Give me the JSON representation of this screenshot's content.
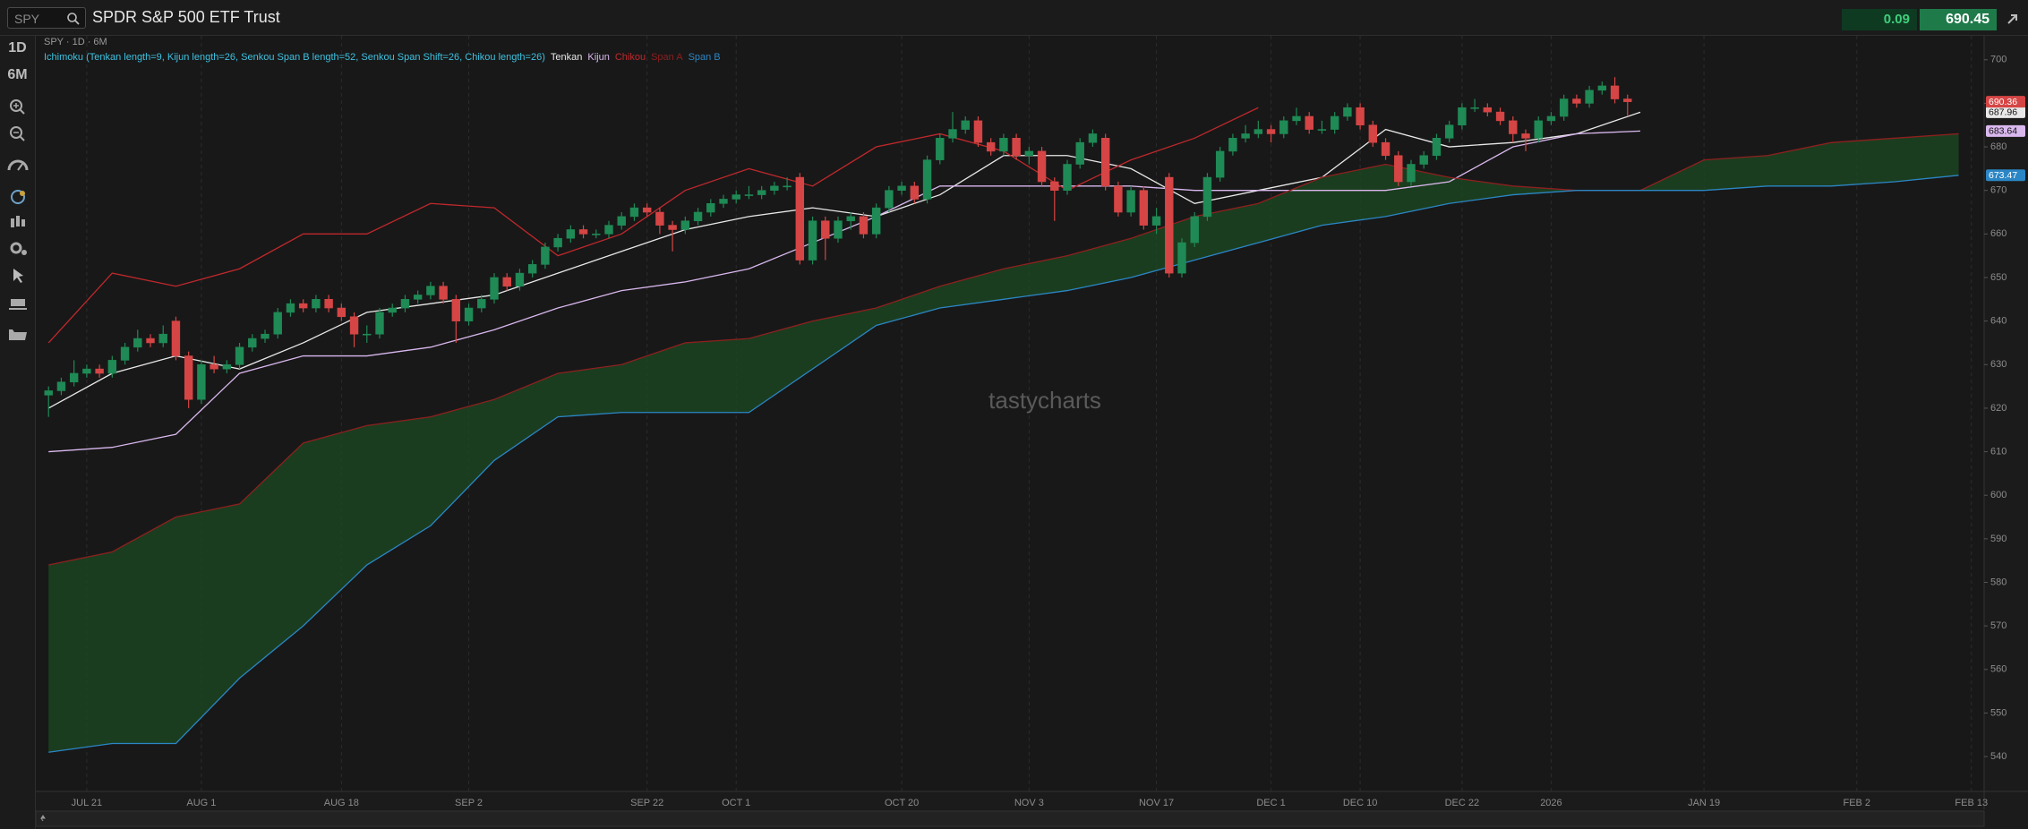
{
  "header": {
    "symbol": "SPY",
    "title": "SPDR S&P 500 ETF Trust",
    "change": 0.09,
    "price": 690.45
  },
  "toolbar": {
    "interval": "1D",
    "range": "6M"
  },
  "chart_data": {
    "type": "candlestick",
    "subtitle": "SPY · 1D · 6M",
    "indicator": "Ichimoku (Tenkan length=9, Kijun length=26, Senkou Span B length=52, Senkou Span Shift=26, Chikou length=26)",
    "watermark": "tastycharts",
    "up_color": "#1f8a55",
    "down_color": "#d64545",
    "cloud_color": "#1c4a22",
    "open": [
      623,
      624,
      626,
      628,
      629,
      628,
      631,
      634,
      636,
      635,
      640,
      632,
      622,
      630,
      629,
      630,
      634,
      636,
      637,
      642,
      644,
      643,
      645,
      643,
      641,
      637,
      637,
      642,
      643,
      645,
      646,
      648,
      645,
      640,
      643,
      645,
      650,
      648,
      651,
      653,
      657,
      659,
      661,
      660,
      660,
      662,
      664,
      666,
      665,
      662,
      661,
      663,
      665,
      667,
      668,
      669,
      669,
      670,
      671,
      673,
      654,
      663,
      659,
      663,
      664,
      660,
      666,
      670,
      671,
      668,
      677,
      682,
      684,
      686,
      681,
      679,
      682,
      678,
      679,
      672,
      670,
      676,
      681,
      682,
      671,
      665,
      670,
      662,
      673,
      651,
      658,
      664,
      673,
      679,
      682,
      683,
      684,
      683,
      686,
      687,
      684,
      684,
      687,
      689,
      685,
      681,
      678,
      672,
      676,
      678,
      682,
      685,
      689,
      689,
      688,
      686,
      683,
      682,
      686,
      687,
      691,
      690,
      693,
      694,
      691
    ],
    "high": [
      625,
      627,
      631,
      630,
      630,
      632,
      635,
      638,
      637,
      639,
      641,
      633,
      631,
      632,
      631,
      635,
      637,
      638,
      643,
      645,
      645,
      646,
      646,
      644,
      642,
      639,
      643,
      644,
      646,
      647,
      649,
      649,
      646,
      644,
      646,
      651,
      651,
      652,
      654,
      658,
      660,
      662,
      662,
      661,
      663,
      665,
      667,
      667,
      666,
      663,
      664,
      666,
      668,
      669,
      670,
      671,
      671,
      672,
      673,
      674,
      664,
      664,
      664,
      665,
      665,
      667,
      671,
      672,
      672,
      678,
      683,
      688,
      687,
      687,
      682,
      683,
      683,
      680,
      680,
      673,
      677,
      682,
      684,
      683,
      672,
      671,
      671,
      666,
      674,
      659,
      665,
      674,
      680,
      683,
      685,
      686,
      685,
      687,
      689,
      688,
      686,
      688,
      690,
      690,
      686,
      682,
      679,
      677,
      679,
      683,
      686,
      690,
      691,
      690,
      689,
      687,
      684,
      687,
      688,
      692,
      692,
      694,
      695,
      696,
      692
    ],
    "low": [
      618,
      623,
      625,
      627,
      627,
      627,
      630,
      633,
      634,
      634,
      631,
      620,
      621,
      628,
      628,
      629,
      633,
      635,
      636,
      641,
      642,
      642,
      642,
      640,
      634,
      635,
      636,
      641,
      642,
      644,
      645,
      644,
      635,
      639,
      642,
      644,
      647,
      647,
      650,
      652,
      656,
      658,
      659,
      659,
      659,
      661,
      663,
      664,
      660,
      656,
      660,
      662,
      664,
      666,
      667,
      668,
      668,
      669,
      670,
      653,
      653,
      654,
      658,
      661,
      659,
      659,
      665,
      669,
      667,
      667,
      676,
      681,
      683,
      680,
      678,
      678,
      677,
      676,
      671,
      663,
      669,
      675,
      680,
      670,
      664,
      664,
      661,
      660,
      650,
      650,
      657,
      663,
      672,
      678,
      681,
      682,
      681,
      682,
      685,
      683,
      683,
      683,
      686,
      684,
      680,
      677,
      671,
      671,
      675,
      677,
      681,
      684,
      688,
      687,
      685,
      681,
      679,
      681,
      685,
      686,
      689,
      689,
      692,
      690,
      687
    ],
    "close": [
      624,
      626,
      628,
      629,
      628,
      631,
      634,
      636,
      635,
      637,
      632,
      622,
      630,
      629,
      630,
      634,
      636,
      637,
      642,
      644,
      643,
      645,
      643,
      641,
      637,
      637,
      642,
      643,
      645,
      646,
      648,
      645,
      640,
      643,
      645,
      650,
      648,
      651,
      653,
      657,
      659,
      661,
      660,
      660,
      662,
      664,
      666,
      665,
      662,
      661,
      663,
      665,
      667,
      668,
      669,
      669,
      670,
      671,
      671,
      654,
      663,
      659,
      663,
      664,
      660,
      666,
      670,
      671,
      668,
      677,
      682,
      684,
      686,
      681,
      679,
      682,
      678,
      679,
      672,
      670,
      676,
      681,
      683,
      671,
      665,
      670,
      662,
      664,
      651,
      658,
      664,
      673,
      679,
      682,
      683,
      684,
      683,
      686,
      687,
      684,
      684,
      687,
      689,
      685,
      681,
      678,
      672,
      676,
      678,
      682,
      685,
      689,
      689,
      688,
      686,
      683,
      682,
      686,
      687,
      691,
      690,
      693,
      694,
      691,
      690.36
    ],
    "line_x": [
      0,
      5,
      10,
      15,
      20,
      25,
      30,
      35,
      40,
      45,
      50,
      55,
      60,
      65,
      70,
      75,
      80,
      85,
      90,
      95,
      100,
      105,
      110,
      115,
      120,
      125,
      130,
      135,
      140,
      145,
      150
    ],
    "series": [
      {
        "name": "Tenkan",
        "color": "#e8e8e8",
        "values": [
          620,
          628,
          632,
          629,
          635,
          642,
          644,
          646,
          651,
          656,
          661,
          664,
          666,
          664,
          669,
          678,
          678,
          675,
          667,
          670,
          673,
          684,
          680,
          681,
          683,
          687.96,
          null,
          null,
          null,
          null,
          null
        ]
      },
      {
        "name": "Kijun",
        "color": "#d9b8ee",
        "values": [
          610,
          611,
          614,
          628,
          632,
          632,
          634,
          638,
          643,
          647,
          649,
          652,
          658,
          664,
          671,
          671,
          671,
          671,
          670,
          670,
          670,
          670,
          672,
          680,
          683,
          683.64,
          null,
          null,
          null,
          null,
          null
        ]
      },
      {
        "name": "Chikou",
        "color": "#c0282c",
        "values": [
          635,
          651,
          648,
          652,
          660,
          660,
          667,
          666,
          655,
          660,
          670,
          675,
          671,
          680,
          683,
          679,
          670,
          677,
          682,
          689,
          null,
          null,
          null,
          null,
          null,
          null,
          null,
          null,
          null,
          null,
          null
        ]
      },
      {
        "name": "Span A",
        "color": "#8e1f1f",
        "values": [
          584,
          587,
          595,
          598,
          612,
          616,
          618,
          622,
          628,
          630,
          635,
          636,
          640,
          643,
          648,
          652,
          655,
          659,
          664,
          667,
          673,
          676,
          673,
          671,
          670,
          670,
          677,
          678,
          681,
          682,
          683
        ]
      },
      {
        "name": "Span B",
        "color": "#2b86c5",
        "values": [
          541,
          543,
          543,
          558,
          570,
          584,
          593,
          608,
          618,
          619,
          619,
          619,
          629,
          639,
          643,
          645,
          647,
          650,
          654,
          658,
          662,
          664,
          667,
          669,
          670,
          670,
          670,
          671,
          671,
          672,
          673.47
        ]
      }
    ],
    "xlim": [
      -1,
      152
    ],
    "xticks": [
      {
        "value": 3,
        "label": "JUL 21"
      },
      {
        "value": 12,
        "label": "AUG 1"
      },
      {
        "value": 23,
        "label": "AUG 18"
      },
      {
        "value": 33,
        "label": "SEP 2"
      },
      {
        "value": 47,
        "label": "SEP 22"
      },
      {
        "value": 54,
        "label": "OCT 1"
      },
      {
        "value": 67,
        "label": "OCT 20"
      },
      {
        "value": 77,
        "label": "NOV 3"
      },
      {
        "value": 87,
        "label": "NOV 17"
      },
      {
        "value": 96,
        "label": "DEC 1"
      },
      {
        "value": 103,
        "label": "DEC 10"
      },
      {
        "value": 111,
        "label": "DEC 22"
      },
      {
        "value": 118,
        "label": "2026"
      },
      {
        "value": 130,
        "label": "JAN 19"
      },
      {
        "value": 142,
        "label": "FEB 2"
      },
      {
        "value": 151,
        "label": "FEB 13"
      }
    ],
    "ylim": [
      532,
      705.5
    ],
    "yticks": [
      540,
      550,
      560,
      570,
      580,
      590,
      600,
      610,
      620,
      630,
      640,
      650,
      660,
      670,
      680,
      690,
      700
    ],
    "grid": true
  }
}
